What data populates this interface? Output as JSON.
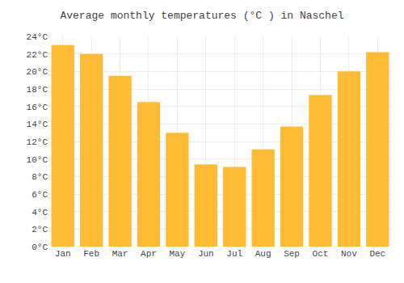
{
  "chart_data": {
    "type": "bar",
    "title": "Average monthly temperatures (°C ) in Naschel",
    "categories": [
      "Jan",
      "Feb",
      "Mar",
      "Apr",
      "May",
      "Jun",
      "Jul",
      "Aug",
      "Sep",
      "Oct",
      "Nov",
      "Dec"
    ],
    "values": [
      23.0,
      22.0,
      19.5,
      16.5,
      13.0,
      9.4,
      9.1,
      11.1,
      13.7,
      17.3,
      20.0,
      22.2
    ],
    "color": "#FFBB33",
    "ylim": [
      0,
      24
    ],
    "yticks": [
      {
        "value": 0,
        "label": "0°C"
      },
      {
        "value": 2,
        "label": "2°C"
      },
      {
        "value": 4,
        "label": "4°C"
      },
      {
        "value": 6,
        "label": "6°C"
      },
      {
        "value": 8,
        "label": "8°C"
      },
      {
        "value": 10,
        "label": "10°C"
      },
      {
        "value": 12,
        "label": "12°C"
      },
      {
        "value": 14,
        "label": "14°C"
      },
      {
        "value": 16,
        "label": "16°C"
      },
      {
        "value": 18,
        "label": "18°C"
      },
      {
        "value": 20,
        "label": "20°C"
      },
      {
        "value": 22,
        "label": "22°C"
      },
      {
        "value": 24,
        "label": "24°C"
      }
    ],
    "grid": true
  }
}
